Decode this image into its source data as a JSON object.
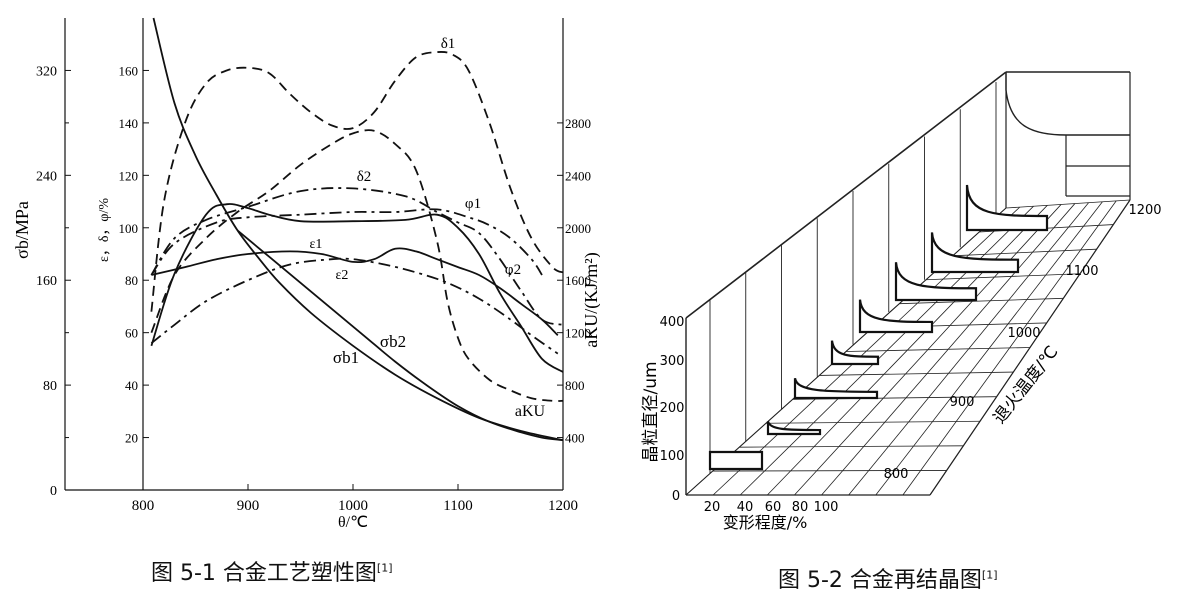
{
  "fig1": {
    "caption": "图 5-1 合金工艺塑性图",
    "ref": "[1]",
    "chart_data": {
      "type": "line",
      "xlabel": "θ/℃",
      "x_ticks": [
        "800",
        "900",
        "1000",
        "1100",
        "1200"
      ],
      "xlim": [
        740,
        1200
      ],
      "left_axis": {
        "label": "σb/MPa",
        "ticks": [
          "0",
          "80",
          "160",
          "240",
          "320"
        ],
        "ylim": [
          0,
          360
        ]
      },
      "mid_axis": {
        "label": "ε，δ，φ/%",
        "ticks": [
          "20",
          "40",
          "60",
          "80",
          "100",
          "120",
          "140",
          "160"
        ],
        "ylim": [
          0,
          180
        ]
      },
      "right_axis": {
        "label": "aKU/(KJ/m²)",
        "ticks": [
          "400",
          "800",
          "1200",
          "1600",
          "2000",
          "2400",
          "2800"
        ],
        "ylim": [
          0,
          3600
        ]
      },
      "series": [
        {
          "name": "δ1",
          "axis": "mid",
          "style": "dashed",
          "x": [
            808,
            820,
            840,
            860,
            880,
            900,
            920,
            940,
            960,
            980,
            1000,
            1020,
            1040,
            1060,
            1080,
            1095,
            1110,
            1130,
            1150,
            1170,
            1190,
            1200
          ],
          "y": [
            68,
            110,
            140,
            155,
            160,
            161,
            159,
            151,
            144,
            139,
            138,
            144,
            156,
            165,
            167,
            166,
            160,
            140,
            115,
            96,
            85,
            83
          ]
        },
        {
          "name": "δ2",
          "axis": "mid",
          "style": "dashed",
          "x": [
            808,
            830,
            860,
            890,
            920,
            950,
            980,
            1000,
            1020,
            1040,
            1060,
            1080,
            1090,
            1100,
            1110,
            1130,
            1150,
            1170,
            1190,
            1200
          ],
          "y": [
            60,
            82,
            96,
            106,
            114,
            124,
            132,
            136,
            137,
            132,
            122,
            95,
            72,
            58,
            50,
            42,
            38,
            35,
            34,
            34
          ]
        },
        {
          "name": "φ1",
          "axis": "mid",
          "style": "dash-dot",
          "x": [
            808,
            830,
            860,
            900,
            950,
            1000,
            1050,
            1080,
            1100,
            1120,
            1140,
            1160,
            1180,
            1200
          ],
          "y": [
            82,
            96,
            103,
            108,
            114,
            115,
            112,
            106,
            102,
            98,
            88,
            76,
            65,
            63
          ]
        },
        {
          "name": "φ2",
          "axis": "mid",
          "style": "dash-dot",
          "x": [
            808,
            830,
            870,
            900,
            950,
            1000,
            1040,
            1080,
            1110,
            1130,
            1150,
            1170,
            1180
          ],
          "y": [
            82,
            94,
            102,
            104,
            105,
            106,
            106,
            107,
            104,
            101,
            96,
            88,
            82
          ]
        },
        {
          "name": "ε1",
          "axis": "mid",
          "style": "solid",
          "x": [
            808,
            840,
            870,
            900,
            940,
            970,
            1000,
            1020,
            1040,
            1060,
            1080,
            1100,
            1120,
            1140,
            1160,
            1180,
            1195
          ],
          "y": [
            82,
            85,
            88,
            90,
            91,
            90,
            87,
            88,
            92,
            91,
            88,
            85,
            82,
            77,
            71,
            65,
            59
          ]
        },
        {
          "name": "ε2",
          "axis": "mid",
          "style": "dash-dot",
          "x": [
            808,
            830,
            860,
            900,
            940,
            980,
            1000,
            1030,
            1060,
            1090,
            1120,
            1150,
            1170,
            1195
          ],
          "y": [
            56,
            63,
            72,
            80,
            86,
            88,
            88,
            86,
            83,
            79,
            73,
            65,
            59,
            52
          ]
        },
        {
          "name": "aKU",
          "axis": "right",
          "style": "solid",
          "x": [
            808,
            830,
            860,
            880,
            900,
            920,
            950,
            1000,
            1050,
            1080,
            1100,
            1120,
            1140,
            1160,
            1180,
            1200
          ],
          "y": [
            1100,
            1650,
            2100,
            2180,
            2150,
            2100,
            2050,
            2050,
            2060,
            2100,
            2000,
            1800,
            1500,
            1250,
            1000,
            900
          ]
        },
        {
          "name": "σb1",
          "axis": "left",
          "style": "solid",
          "x": [
            810,
            830,
            850,
            870,
            890,
            910,
            930,
            960,
            1000,
            1040,
            1080,
            1120,
            1160,
            1200
          ],
          "y": [
            360,
            295,
            255,
            225,
            198,
            177,
            158,
            135,
            110,
            88,
            70,
            55,
            45,
            38
          ]
        },
        {
          "name": "σb2",
          "axis": "left",
          "style": "solid",
          "x": [
            890,
            920,
            950,
            980,
            1010,
            1040,
            1070,
            1100,
            1130,
            1160,
            1180,
            1200
          ],
          "y": [
            198,
            178,
            158,
            138,
            118,
            98,
            80,
            64,
            52,
            44,
            40,
            38
          ]
        }
      ]
    }
  },
  "fig2": {
    "caption": "图 5-2 合金再结晶图",
    "ref": "[1]",
    "chart_data": {
      "type": "3d-surface",
      "x_axis": {
        "label": "变形程度/%",
        "ticks": [
          "20",
          "40",
          "60",
          "80",
          "100"
        ]
      },
      "y_axis": {
        "label": "晶粒直径/um",
        "ticks": [
          "100",
          "200",
          "300",
          "400"
        ]
      },
      "z_axis": {
        "label": "退火温度/℃",
        "ticks": [
          "800",
          "900",
          "1000",
          "1100",
          "1200"
        ]
      },
      "origin_label": "0"
    }
  }
}
